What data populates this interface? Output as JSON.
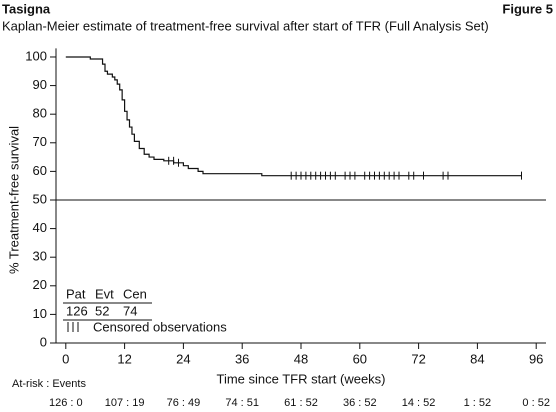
{
  "header": {
    "product": "Tasigna",
    "figure": "Figure 5"
  },
  "chart_data": {
    "type": "km",
    "title": "Kaplan-Meier estimate of treatment-free survival after start of TFR (Full Analysis Set)",
    "x_label": "Time since TFR start (weeks)",
    "y_label": "% Treatment-free survival",
    "xlim": [
      -2,
      98
    ],
    "ylim": [
      0,
      103
    ],
    "xticks": [
      0,
      12,
      24,
      36,
      48,
      60,
      72,
      84,
      96
    ],
    "yticks": [
      0,
      10,
      20,
      30,
      40,
      50,
      60,
      70,
      80,
      90,
      100
    ],
    "reference_line": 50,
    "color": "#111111",
    "km": {
      "x": [
        0,
        5,
        7.5,
        8,
        8.5,
        9.5,
        10,
        10.5,
        11,
        11.5,
        12,
        12.5,
        13,
        13.5,
        14,
        15,
        16,
        17,
        18,
        20,
        22,
        24,
        25,
        27,
        28,
        40,
        93
      ],
      "values": [
        100,
        99.3,
        97.5,
        95,
        94,
        93,
        92,
        90.5,
        88.5,
        85,
        81,
        78,
        75.5,
        73,
        70.5,
        68,
        66,
        65,
        64.2,
        63.7,
        63,
        62,
        61,
        60,
        59.2,
        58.5,
        58.5
      ]
    },
    "censored": {
      "x": [
        21,
        22,
        23,
        46,
        47,
        48,
        49,
        50,
        51,
        52,
        53,
        54,
        55,
        57,
        58,
        59,
        61,
        62,
        63,
        64,
        65,
        66,
        67,
        68,
        70,
        71,
        73,
        77,
        78,
        93
      ],
      "values": [
        63.7,
        63.7,
        63,
        58.5,
        58.5,
        58.5,
        58.5,
        58.5,
        58.5,
        58.5,
        58.5,
        58.5,
        58.5,
        58.5,
        58.5,
        58.5,
        58.5,
        58.5,
        58.5,
        58.5,
        58.5,
        58.5,
        58.5,
        58.5,
        58.5,
        58.5,
        58.5,
        58.5,
        58.5,
        58.5
      ]
    },
    "summary": {
      "headers": [
        "Pat",
        "Evt",
        "Cen"
      ],
      "values": [
        126,
        52,
        74
      ]
    },
    "censored_legend": "Censored observations",
    "at_risk_title": "At-risk : Events",
    "at_risk_labels": [
      "126 : 0",
      "107 : 19",
      "76 : 49",
      "74 : 51",
      "61 : 52",
      "36 : 52",
      "14 : 52",
      "1 : 52",
      "0 : 52"
    ]
  }
}
